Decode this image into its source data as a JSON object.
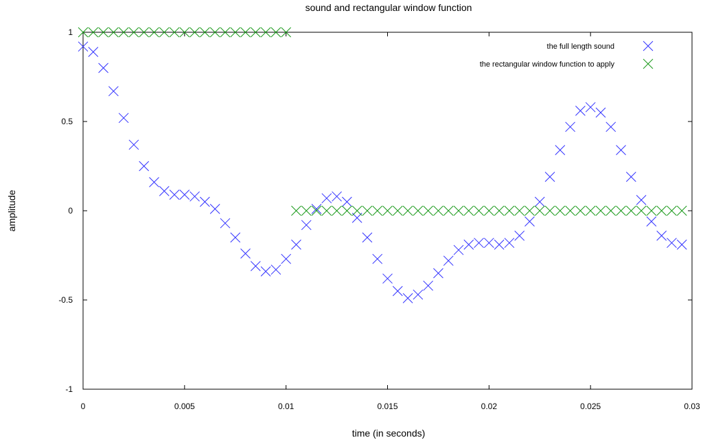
{
  "chart_data": {
    "type": "scatter",
    "title": "sound and rectangular window function",
    "xlabel": "time (in seconds)",
    "ylabel": "amplitude",
    "xlim": [
      0,
      0.03
    ],
    "ylim": [
      -1,
      1
    ],
    "xticks": [
      "0",
      "0.005",
      "0.01",
      "0.015",
      "0.02",
      "0.025",
      "0.03"
    ],
    "yticks": [
      "1",
      "0.5",
      "0",
      "-0.5",
      "-1"
    ],
    "xtick_values": [
      0,
      0.005,
      0.01,
      0.015,
      0.02,
      0.025,
      0.03
    ],
    "ytick_values": [
      1,
      0.5,
      0,
      -0.5,
      -1
    ],
    "grid": false,
    "legend_position": "top-right",
    "series": [
      {
        "name": "the full length sound",
        "color": "#3232ff",
        "marker": "x",
        "x": [
          0.0,
          0.0005,
          0.001,
          0.0015,
          0.002,
          0.0025,
          0.003,
          0.0035,
          0.004,
          0.0045,
          0.005,
          0.0055,
          0.006,
          0.0065,
          0.007,
          0.0075,
          0.008,
          0.0085,
          0.009,
          0.0095,
          0.01,
          0.0105,
          0.011,
          0.0115,
          0.012,
          0.0125,
          0.013,
          0.0135,
          0.014,
          0.0145,
          0.015,
          0.0155,
          0.016,
          0.0165,
          0.017,
          0.0175,
          0.018,
          0.0185,
          0.019,
          0.0195,
          0.02,
          0.0205,
          0.021,
          0.0215,
          0.022,
          0.0225,
          0.023,
          0.0235,
          0.024,
          0.0245,
          0.025,
          0.0255,
          0.026,
          0.0265,
          0.027,
          0.0275,
          0.028,
          0.0285,
          0.029,
          0.0295
        ],
        "y": [
          0.92,
          0.89,
          0.8,
          0.67,
          0.52,
          0.37,
          0.25,
          0.16,
          0.11,
          0.09,
          0.09,
          0.08,
          0.05,
          0.01,
          -0.07,
          -0.15,
          -0.24,
          -0.31,
          -0.34,
          -0.33,
          -0.27,
          -0.19,
          -0.08,
          0.01,
          0.07,
          0.08,
          0.05,
          -0.04,
          -0.15,
          -0.27,
          -0.38,
          -0.45,
          -0.49,
          -0.47,
          -0.42,
          -0.35,
          -0.28,
          -0.22,
          -0.19,
          -0.18,
          -0.18,
          -0.19,
          -0.18,
          -0.14,
          -0.06,
          0.05,
          0.19,
          0.34,
          0.47,
          0.56,
          0.58,
          0.55,
          0.47,
          0.34,
          0.19,
          0.06,
          -0.06,
          -0.14,
          -0.18,
          -0.19
        ]
      },
      {
        "name": "the rectangular window function to apply",
        "color": "#1a991a",
        "marker": "x",
        "x": [
          0.0,
          0.0005,
          0.001,
          0.0015,
          0.002,
          0.0025,
          0.003,
          0.0035,
          0.004,
          0.0045,
          0.005,
          0.0055,
          0.006,
          0.0065,
          0.007,
          0.0075,
          0.008,
          0.0085,
          0.009,
          0.0095,
          0.01,
          0.0105,
          0.011,
          0.0115,
          0.012,
          0.0125,
          0.013,
          0.0135,
          0.014,
          0.0145,
          0.015,
          0.0155,
          0.016,
          0.0165,
          0.017,
          0.0175,
          0.018,
          0.0185,
          0.019,
          0.0195,
          0.02,
          0.0205,
          0.021,
          0.0215,
          0.022,
          0.0225,
          0.023,
          0.0235,
          0.024,
          0.0245,
          0.025,
          0.0255,
          0.026,
          0.0265,
          0.027,
          0.0275,
          0.028,
          0.0285,
          0.029,
          0.0295
        ],
        "y": [
          1,
          1,
          1,
          1,
          1,
          1,
          1,
          1,
          1,
          1,
          1,
          1,
          1,
          1,
          1,
          1,
          1,
          1,
          1,
          1,
          1,
          0,
          0,
          0,
          0,
          0,
          0,
          0,
          0,
          0,
          0,
          0,
          0,
          0,
          0,
          0,
          0,
          0,
          0,
          0,
          0,
          0,
          0,
          0,
          0,
          0,
          0,
          0,
          0,
          0,
          0,
          0,
          0,
          0,
          0,
          0,
          0,
          0,
          0,
          0
        ]
      }
    ]
  }
}
